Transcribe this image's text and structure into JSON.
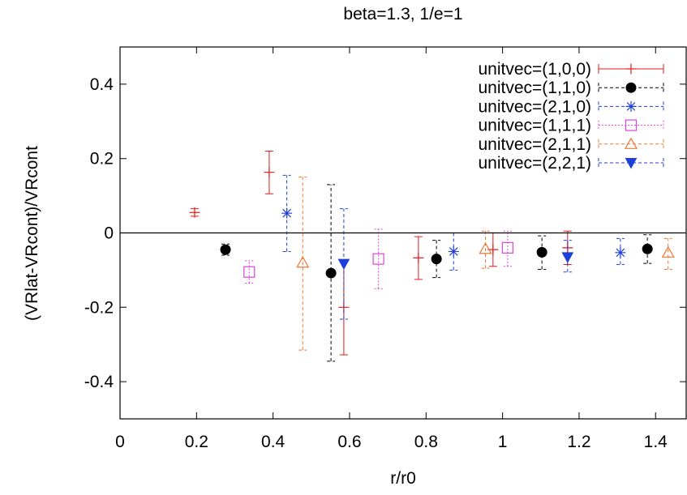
{
  "chart_data": {
    "type": "scatter",
    "title": "beta=1.3, 1/e=1",
    "xlabel": "r/r0",
    "ylabel": "(VRlat-VRcont)/VRcont",
    "xlim": [
      0,
      1.48
    ],
    "ylim": [
      -0.5,
      0.5
    ],
    "xticks": [
      0,
      0.2,
      0.4,
      0.6,
      0.8,
      1,
      1.2,
      1.4
    ],
    "xtick_labels": [
      "0",
      "0.2",
      "0.4",
      "0.6",
      "0.8",
      "1",
      "1.2",
      "1.4"
    ],
    "yticks": [
      -0.4,
      -0.2,
      0,
      0.2,
      0.4
    ],
    "ytick_labels": [
      "-0.4",
      "-0.2",
      "0",
      "0.2",
      "0.4"
    ],
    "grid": false,
    "zero_line": true,
    "legend_position": "top-right",
    "series": [
      {
        "name": "unitvec=(1,0,0)",
        "color": "#e41a1c",
        "marker": "plus",
        "line_style": "solid",
        "points": [
          {
            "x": 0.195,
            "y": 0.055,
            "lo": 0.045,
            "hi": 0.065
          },
          {
            "x": 0.39,
            "y": 0.163,
            "lo": 0.105,
            "hi": 0.22
          },
          {
            "x": 0.585,
            "y": -0.2,
            "lo": -0.328,
            "hi": -0.075
          },
          {
            "x": 0.78,
            "y": -0.067,
            "lo": -0.125,
            "hi": -0.01
          },
          {
            "x": 0.975,
            "y": -0.045,
            "lo": -0.09,
            "hi": 0.0
          },
          {
            "x": 1.17,
            "y": -0.04,
            "lo": -0.085,
            "hi": 0.005
          }
        ]
      },
      {
        "name": "unitvec=(1,1,0)",
        "color": "#000000",
        "marker": "filled-circle",
        "line_style": "dashed",
        "points": [
          {
            "x": 0.2757,
            "y": -0.045,
            "lo": -0.06,
            "hi": -0.03
          },
          {
            "x": 0.5515,
            "y": -0.108,
            "lo": -0.345,
            "hi": 0.13
          },
          {
            "x": 0.8272,
            "y": -0.07,
            "lo": -0.12,
            "hi": -0.02
          },
          {
            "x": 1.1029,
            "y": -0.052,
            "lo": -0.098,
            "hi": -0.008
          },
          {
            "x": 1.3786,
            "y": -0.043,
            "lo": -0.082,
            "hi": -0.005
          }
        ]
      },
      {
        "name": "unitvec=(2,1,0)",
        "color": "#1f3fdb",
        "marker": "star",
        "line_style": "dashed",
        "points": [
          {
            "x": 0.436,
            "y": 0.053,
            "lo": -0.05,
            "hi": 0.155
          },
          {
            "x": 0.872,
            "y": -0.05,
            "lo": -0.1,
            "hi": 0.0
          },
          {
            "x": 1.308,
            "y": -0.053,
            "lo": -0.085,
            "hi": -0.015
          }
        ]
      },
      {
        "name": "unitvec=(1,1,1)",
        "color": "#e040e0",
        "marker": "open-square",
        "line_style": "dotted",
        "points": [
          {
            "x": 0.3377,
            "y": -0.105,
            "lo": -0.135,
            "hi": -0.075
          },
          {
            "x": 0.6755,
            "y": -0.07,
            "lo": -0.15,
            "hi": 0.01
          },
          {
            "x": 1.0132,
            "y": -0.04,
            "lo": -0.09,
            "hi": 0.005
          }
        ]
      },
      {
        "name": "unitvec=(2,1,1)",
        "color": "#f07830",
        "marker": "open-triangle",
        "line_style": "dashed",
        "points": [
          {
            "x": 0.4776,
            "y": -0.08,
            "lo": -0.315,
            "hi": 0.15
          },
          {
            "x": 0.9552,
            "y": -0.043,
            "lo": -0.095,
            "hi": 0.005
          },
          {
            "x": 1.4328,
            "y": -0.053,
            "lo": -0.098,
            "hi": -0.015
          }
        ]
      },
      {
        "name": "unitvec=(2,2,1)",
        "color": "#1f3fdb",
        "marker": "filled-triangle-down",
        "line_style": "dashed",
        "points": [
          {
            "x": 0.585,
            "y": -0.083,
            "lo": -0.232,
            "hi": 0.065
          },
          {
            "x": 1.17,
            "y": -0.065,
            "lo": -0.105,
            "hi": -0.02
          }
        ]
      }
    ]
  }
}
